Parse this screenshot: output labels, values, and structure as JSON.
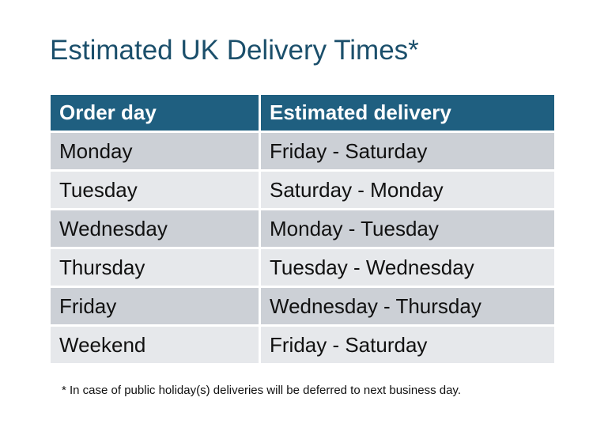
{
  "title": "Estimated UK Delivery Times*",
  "table": {
    "headers": [
      "Order day",
      "Estimated delivery"
    ],
    "rows": [
      [
        "Monday",
        "Friday - Saturday"
      ],
      [
        "Tuesday",
        "Saturday - Monday"
      ],
      [
        "Wednesday",
        "Monday - Tuesday"
      ],
      [
        "Thursday",
        "Tuesday - Wednesday"
      ],
      [
        "Friday",
        "Wednesday - Thursday"
      ],
      [
        "Weekend",
        "Friday - Saturday"
      ]
    ]
  },
  "footnote": "* In case of public holiday(s) deliveries will be deferred to next business day.",
  "colors": {
    "header": "#1f5f80",
    "title": "#1b4f6b",
    "row_dark": "#ccd0d6",
    "row_light": "#e6e8eb"
  }
}
